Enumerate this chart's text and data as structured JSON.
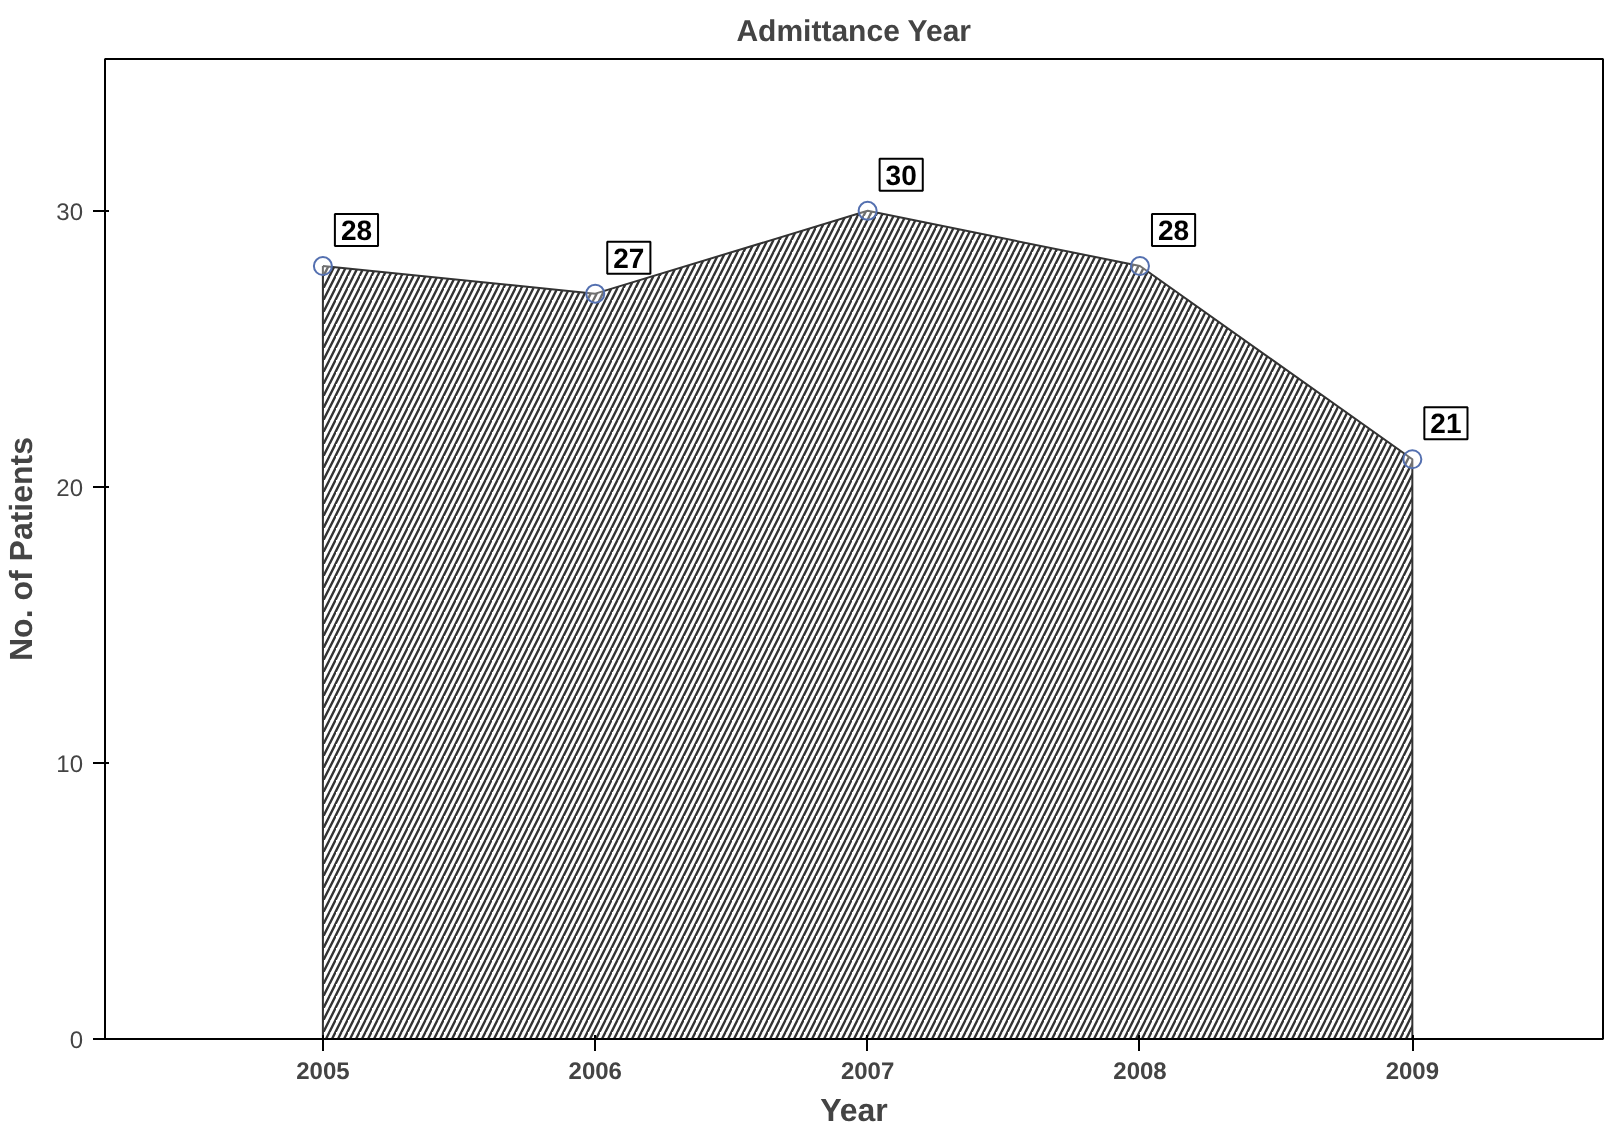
{
  "chart_data": {
    "type": "area",
    "title": "Admittance Year",
    "xlabel": "Year",
    "ylabel": "No. of Patients",
    "categories": [
      "2005",
      "2006",
      "2007",
      "2008",
      "2009"
    ],
    "series": [
      {
        "color": "#333333",
        "values": [
          28,
          27,
          30,
          28,
          21
        ]
      }
    ],
    "ylim": [
      0,
      35.5
    ],
    "yticks": [
      0,
      10,
      20,
      30
    ],
    "grid": false,
    "marker": "circle",
    "data_labels": true
  }
}
